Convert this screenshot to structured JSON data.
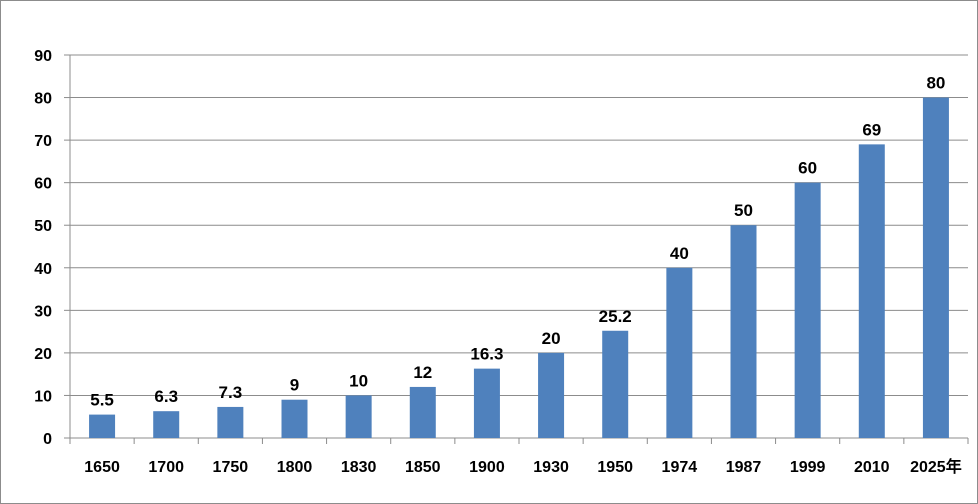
{
  "chart_data": {
    "type": "bar",
    "title": "",
    "xlabel": "",
    "ylabel": "",
    "categories": [
      "1650",
      "1700",
      "1750",
      "1800",
      "1830",
      "1850",
      "1900",
      "1930",
      "1950",
      "1974",
      "1987",
      "1999",
      "2010",
      "2025年"
    ],
    "values": [
      5.5,
      6.3,
      7.3,
      9,
      10,
      12,
      16.3,
      20,
      25.2,
      40,
      50,
      60,
      69,
      80
    ],
    "data_labels": [
      "5.5",
      "6.3",
      "7.3",
      "9",
      "10",
      "12",
      "16.3",
      "20",
      "25.2",
      "40",
      "50",
      "60",
      "69",
      "80"
    ],
    "ylim": [
      0,
      90
    ],
    "yticks": [
      "0",
      "10",
      "20",
      "30",
      "40",
      "50",
      "60",
      "70",
      "80",
      "90"
    ],
    "grid": true,
    "legend": "none",
    "colors": {
      "bar": "#4f81bd",
      "grid": "#8c8c8c",
      "axis": "#8c8c8c",
      "text": "#000000"
    }
  }
}
